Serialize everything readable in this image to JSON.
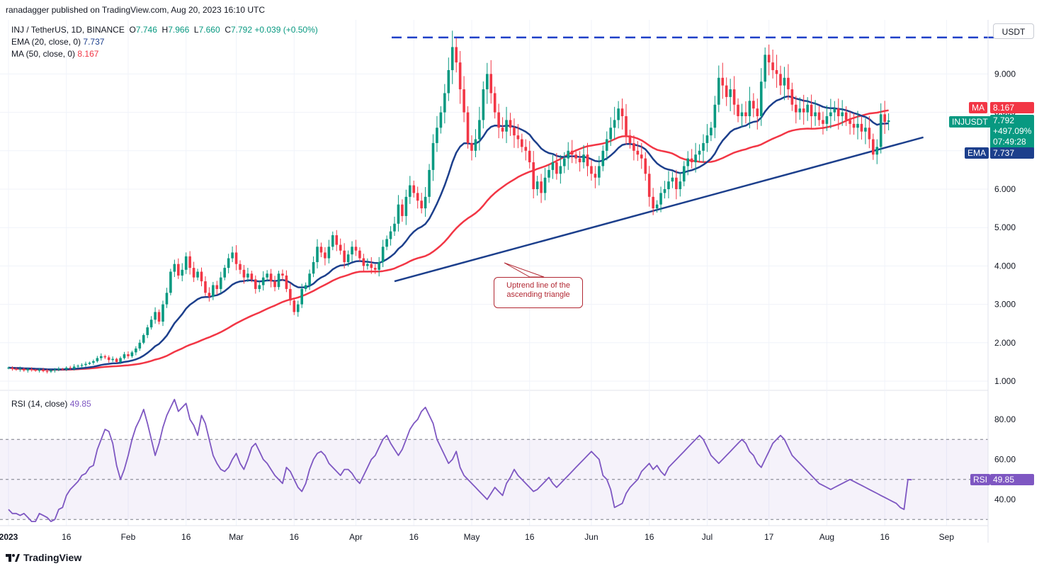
{
  "publisher": "ranadagger published on TradingView.com, Aug 20, 2023 16:10 UTC",
  "legend": {
    "symbol": "INJ / TetherUS, 1D, BINANCE",
    "open_label": "O",
    "open": "7.746",
    "high_label": "H",
    "high": "7.966",
    "low_label": "L",
    "low": "7.660",
    "close_label": "C",
    "close": "7.792",
    "change": "+0.039 (+0.50%)",
    "ema_label": "EMA (20, close, 0)",
    "ema_value": "7.737",
    "ma_label": "MA (50, close, 0)",
    "ma_value": "8.167"
  },
  "rsi_legend": {
    "label": "RSI (14, close)",
    "value": "49.85"
  },
  "currency": "USDT",
  "tags": {
    "ma": {
      "label": "MA",
      "value": "8.167"
    },
    "price": {
      "label": "INJUSDT",
      "value": "7.792",
      "change": "+497.09%",
      "countdown": "07:49:28"
    },
    "ema": {
      "label": "EMA",
      "value": "7.737"
    },
    "rsi": {
      "label": "RSI",
      "value": "49.85"
    }
  },
  "annotation": {
    "line1": "Uptrend line of the",
    "line2": "ascending triangle"
  },
  "brand": "TradingView",
  "colors": {
    "up": "#089981",
    "down": "#f23645",
    "ema": "#1c3f8c",
    "ma": "#f23645",
    "rsi": "#7e57c2",
    "resistance": "#1e40c8",
    "trendline": "#1c3f8c"
  },
  "chart_data": [
    {
      "type": "candlestick",
      "title": "INJ / TetherUS, 1D, BINANCE",
      "ylabel": "USDT",
      "ylim": [
        0.75,
        10.0
      ],
      "y_ticks": [
        "1.000",
        "2.000",
        "3.000",
        "4.000",
        "5.000",
        "6.000",
        "7.000",
        "8.000",
        "9.000"
      ],
      "x_ticks": [
        "2023",
        "16",
        "Feb",
        "16",
        "Mar",
        "16",
        "Apr",
        "16",
        "May",
        "16",
        "Jun",
        "16",
        "Jul",
        "17",
        "Aug",
        "16",
        "Sep"
      ],
      "x_tick_days": [
        0,
        15,
        31,
        46,
        59,
        74,
        90,
        105,
        120,
        135,
        151,
        166,
        181,
        197,
        212,
        227,
        243
      ],
      "x_start": "2022-12-21",
      "closes": [
        1.35,
        1.32,
        1.3,
        1.32,
        1.28,
        1.31,
        1.29,
        1.27,
        1.3,
        1.26,
        1.25,
        1.28,
        1.3,
        1.32,
        1.31,
        1.35,
        1.33,
        1.38,
        1.4,
        1.42,
        1.45,
        1.48,
        1.52,
        1.6,
        1.65,
        1.62,
        1.55,
        1.58,
        1.5,
        1.6,
        1.7,
        1.65,
        1.75,
        1.85,
        2.0,
        2.2,
        2.4,
        2.6,
        2.8,
        2.55,
        3.0,
        3.3,
        3.85,
        4.05,
        3.75,
        3.9,
        4.25,
        3.95,
        3.7,
        3.85,
        3.6,
        3.3,
        3.2,
        3.5,
        3.4,
        3.7,
        3.95,
        4.2,
        4.35,
        4.05,
        3.9,
        3.7,
        3.8,
        3.65,
        3.4,
        3.5,
        3.7,
        3.8,
        3.6,
        3.45,
        3.8,
        3.75,
        3.4,
        3.1,
        2.8,
        3.0,
        3.4,
        3.5,
        3.8,
        4.1,
        4.5,
        4.35,
        4.2,
        4.5,
        4.8,
        4.55,
        4.4,
        4.1,
        4.3,
        4.5,
        4.4,
        4.2,
        4.0,
        4.05,
        3.95,
        3.9,
        4.1,
        4.5,
        4.7,
        4.9,
        5.1,
        5.6,
        5.3,
        5.8,
        6.1,
        5.9,
        5.7,
        5.5,
        5.8,
        6.5,
        7.2,
        7.6,
        8.0,
        8.5,
        9.1,
        9.7,
        9.3,
        8.6,
        8.0,
        7.2,
        7.0,
        7.3,
        7.8,
        8.6,
        9.0,
        8.5,
        8.0,
        7.6,
        7.5,
        7.8,
        7.6,
        7.4,
        7.3,
        7.1,
        7.0,
        6.7,
        6.0,
        6.2,
        5.9,
        6.3,
        6.5,
        6.7,
        6.4,
        6.6,
        6.8,
        7.0,
        6.9,
        6.8,
        6.7,
        6.9,
        6.6,
        6.4,
        6.3,
        6.6,
        7.0,
        7.3,
        7.6,
        7.8,
        8.1,
        7.9,
        7.4,
        7.2,
        7.0,
        6.9,
        6.8,
        6.4,
        5.8,
        5.5,
        5.6,
        5.9,
        6.0,
        6.2,
        6.3,
        6.0,
        6.2,
        6.6,
        6.8,
        6.7,
        6.9,
        7.0,
        7.2,
        7.4,
        7.6,
        8.2,
        8.9,
        8.7,
        8.4,
        8.6,
        8.2,
        7.9,
        8.0,
        7.9,
        8.3,
        8.1,
        7.9,
        8.8,
        9.5,
        9.3,
        9.1,
        9.0,
        8.7,
        8.9,
        8.6,
        8.2,
        8.0,
        8.1,
        8.0,
        8.2,
        7.9,
        8.0,
        7.8,
        7.7,
        7.9,
        8.0,
        8.1,
        7.9,
        8.0,
        7.8,
        7.7,
        7.6,
        7.7,
        7.5,
        7.6,
        7.3,
        6.9,
        7.1,
        7.95,
        7.75,
        7.79
      ],
      "ema20_last": 7.737,
      "ma50_last": 8.167,
      "resistance_level": 9.95,
      "trendline": {
        "from": {
          "day": 100,
          "value": 3.6
        },
        "to": {
          "day": 237,
          "value": 7.35
        }
      }
    },
    {
      "type": "line",
      "title": "RSI (14, close)",
      "ylim": [
        26,
        92
      ],
      "y_ticks": [
        "40.00",
        "60.00",
        "80.00"
      ],
      "band": [
        30,
        70
      ],
      "mid": 50,
      "values": [
        35,
        33,
        33,
        32,
        33,
        31,
        29,
        29,
        33,
        32,
        31,
        29,
        30,
        35,
        36,
        42,
        45,
        47,
        49,
        52,
        53,
        56,
        57,
        65,
        70,
        75,
        74,
        68,
        57,
        50,
        55,
        62,
        70,
        76,
        80,
        85,
        78,
        70,
        62,
        68,
        76,
        82,
        86,
        90,
        84,
        86,
        88,
        80,
        77,
        72,
        82,
        78,
        70,
        62,
        58,
        55,
        54,
        56,
        60,
        63,
        58,
        55,
        60,
        66,
        68,
        64,
        60,
        58,
        55,
        52,
        50,
        48,
        56,
        54,
        50,
        46,
        44,
        48,
        55,
        60,
        63,
        64,
        62,
        58,
        56,
        54,
        52,
        55,
        55,
        53,
        50,
        48,
        52,
        56,
        60,
        62,
        66,
        70,
        72,
        68,
        65,
        62,
        65,
        70,
        75,
        78,
        80,
        84,
        86,
        82,
        78,
        70,
        66,
        62,
        58,
        60,
        64,
        56,
        52,
        50,
        48,
        46,
        44,
        42,
        40,
        43,
        46,
        44,
        42,
        48,
        51,
        55,
        52,
        50,
        48,
        46,
        44,
        45,
        47,
        49,
        51,
        48,
        46,
        48,
        50,
        52,
        54,
        56,
        58,
        60,
        62,
        64,
        62,
        60,
        52,
        50,
        45,
        36,
        37,
        38,
        43,
        46,
        48,
        50,
        54,
        56,
        58,
        55,
        57,
        54,
        52,
        56,
        58,
        60,
        62,
        64,
        66,
        68,
        70,
        72,
        70,
        66,
        62,
        60,
        58,
        60,
        62,
        64,
        66,
        68,
        70,
        68,
        64,
        62,
        58,
        56,
        60,
        64,
        68,
        70,
        72,
        70,
        66,
        62,
        60,
        58,
        56,
        54,
        52,
        50,
        48,
        47,
        46,
        45,
        46,
        47,
        48,
        49,
        50,
        49,
        48,
        47,
        46,
        45,
        44,
        43,
        42,
        41,
        40,
        39,
        38,
        36,
        35,
        50,
        49.85
      ]
    }
  ]
}
